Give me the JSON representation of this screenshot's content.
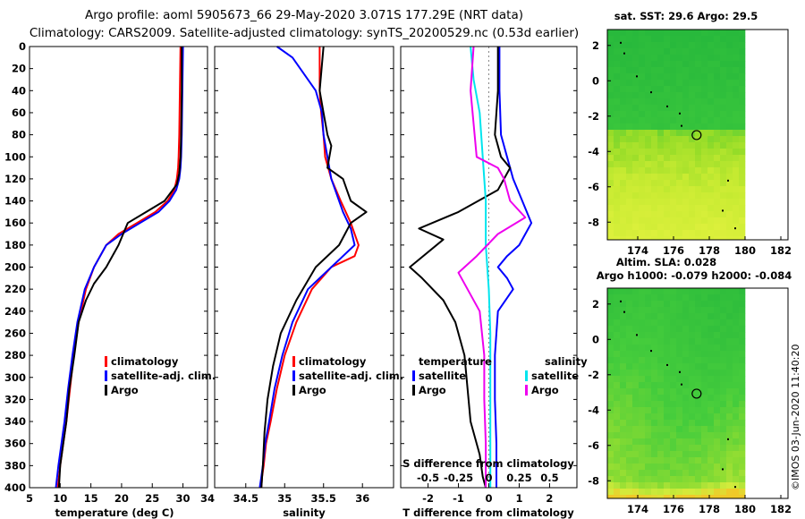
{
  "header": {
    "line1": "Argo profile: aoml 5905673_66 29-May-2020 3.071S 177.29E (NRT data)",
    "line2": "Climatology: CARS2009. Satellite-adjusted climatology: synTS_20200529.nc (0.53d earlier)"
  },
  "credit": "©IMOS 03-Jun-2020 11:40:20",
  "colors": {
    "climatology": "#ff0000",
    "satellite": "#0000ff",
    "argo": "#000000",
    "sat_salinity": "#00e5ee",
    "argo_salinity": "#ee00ee"
  },
  "chart_data": [
    {
      "type": "line",
      "id": "temperature_profile",
      "xlabel": "temperature (deg C)",
      "ylabel": "",
      "xlim": [
        5,
        34
      ],
      "ylim": [
        400,
        0
      ],
      "xticks": [
        "5",
        "10",
        "15",
        "20",
        "25",
        "30",
        "34"
      ],
      "xtick_values": [
        5,
        10,
        15,
        20,
        25,
        30,
        34
      ],
      "yticks": [
        0,
        20,
        40,
        60,
        80,
        100,
        120,
        140,
        160,
        180,
        200,
        220,
        240,
        260,
        280,
        300,
        320,
        340,
        360,
        380,
        400
      ],
      "legend": [
        "climatology",
        "satellite-adj. clim.",
        "Argo"
      ],
      "series": [
        {
          "name": "climatology",
          "color": "#ff0000",
          "x": [
            29.6,
            29.5,
            29.4,
            29.3,
            29.2,
            29.0,
            28.6,
            27.5,
            25.5,
            22.5,
            19.5,
            17.5,
            15.5,
            14.2,
            13.0,
            12.2,
            11.6,
            11.0,
            10.5,
            10.0,
            9.6
          ],
          "depth": [
            0,
            40,
            80,
            100,
            110,
            120,
            130,
            140,
            150,
            160,
            170,
            180,
            200,
            220,
            250,
            280,
            310,
            340,
            360,
            380,
            400
          ]
        },
        {
          "name": "satellite-adj. clim.",
          "color": "#0000ff",
          "x": [
            30.0,
            29.9,
            29.8,
            29.7,
            29.6,
            29.4,
            28.9,
            27.8,
            26.0,
            23.0,
            20.0,
            17.5,
            15.5,
            14.0,
            12.8,
            12.0,
            11.3,
            10.7,
            10.2,
            9.7,
            9.3
          ],
          "depth": [
            0,
            40,
            80,
            100,
            110,
            120,
            130,
            140,
            150,
            160,
            170,
            180,
            200,
            220,
            250,
            280,
            310,
            340,
            360,
            380,
            400
          ]
        },
        {
          "name": "Argo",
          "color": "#000000",
          "x": [
            29.8,
            29.8,
            29.7,
            29.6,
            29.4,
            29.0,
            27.0,
            24.0,
            21.0,
            19.5,
            17.5,
            15.5,
            14.2,
            13.0,
            12.3,
            11.5,
            11.0,
            10.5,
            10.0,
            9.8
          ],
          "depth": [
            0,
            40,
            80,
            100,
            115,
            125,
            140,
            150,
            160,
            180,
            200,
            215,
            230,
            250,
            280,
            310,
            340,
            360,
            380,
            400
          ]
        }
      ]
    },
    {
      "type": "line",
      "id": "salinity_profile",
      "xlabel": "salinity",
      "xlim": [
        34.1,
        36.4
      ],
      "ylim": [
        400,
        0
      ],
      "xticks": [
        "34.5",
        "35",
        "35.5",
        "36"
      ],
      "xtick_values": [
        34.5,
        35,
        35.5,
        36
      ],
      "legend": [
        "climatology",
        "satellite-adj. clim.",
        "Argo"
      ],
      "series": [
        {
          "name": "climatology",
          "color": "#ff0000",
          "x": [
            35.45,
            35.45,
            35.47,
            35.5,
            35.52,
            35.6,
            35.72,
            35.85,
            35.95,
            35.9,
            35.6,
            35.35,
            35.15,
            35.0,
            34.9,
            34.82,
            34.76,
            34.73,
            34.71,
            34.7
          ],
          "depth": [
            0,
            40,
            60,
            80,
            100,
            120,
            140,
            160,
            180,
            190,
            200,
            220,
            250,
            280,
            310,
            340,
            360,
            380,
            390,
            400
          ]
        },
        {
          "name": "satellite-adj. clim.",
          "color": "#0000ff",
          "x": [
            34.9,
            35.1,
            35.25,
            35.4,
            35.48,
            35.5,
            35.6,
            35.75,
            35.85,
            35.9,
            35.6,
            35.3,
            35.1,
            34.97,
            34.87,
            34.8,
            34.75,
            34.72,
            34.7,
            34.68
          ],
          "depth": [
            0,
            10,
            25,
            40,
            60,
            80,
            120,
            150,
            165,
            180,
            200,
            220,
            250,
            280,
            310,
            340,
            360,
            380,
            390,
            400
          ]
        },
        {
          "name": "Argo",
          "color": "#000000",
          "x": [
            35.5,
            35.45,
            35.5,
            35.55,
            35.6,
            35.55,
            35.75,
            35.8,
            35.85,
            36.05,
            35.85,
            35.7,
            35.4,
            35.15,
            34.95,
            34.85,
            34.78,
            34.74,
            34.72,
            34.7
          ],
          "depth": [
            0,
            40,
            60,
            80,
            90,
            110,
            120,
            130,
            140,
            150,
            160,
            180,
            200,
            230,
            260,
            290,
            320,
            350,
            380,
            400
          ]
        }
      ]
    },
    {
      "type": "line",
      "id": "difference_profile",
      "xlabel": "T difference from climatology",
      "top_axis_label": "S difference from climatology",
      "xlim": [
        -2.9,
        2.9
      ],
      "ylim": [
        400,
        0
      ],
      "xticks": [
        "-2",
        "-1",
        "0",
        "1",
        "2"
      ],
      "xtick_values": [
        -2,
        -1,
        0,
        1,
        2
      ],
      "sticks": [
        "-0.5",
        "-0.25",
        "0",
        "0.25",
        "0.5"
      ],
      "stick_values": [
        -2,
        -1,
        0,
        1,
        2
      ],
      "legend_headers": [
        "temperature",
        "salinity"
      ],
      "legend_left": [
        "satellite",
        "Argo"
      ],
      "legend_right": [
        "satellite",
        "Argo"
      ],
      "series": [
        {
          "name": "T satellite",
          "color": "#0000ff",
          "x": [
            0.35,
            0.35,
            0.4,
            0.6,
            0.8,
            1.1,
            1.4,
            1.0,
            0.6,
            0.3,
            0.6,
            0.8,
            0.3,
            0.2,
            0.2,
            0.25,
            0.25,
            0.25
          ],
          "depth": [
            0,
            40,
            80,
            100,
            120,
            140,
            160,
            180,
            190,
            200,
            210,
            220,
            240,
            280,
            320,
            360,
            380,
            400
          ]
        },
        {
          "name": "T Argo",
          "color": "#000000",
          "x": [
            0.3,
            0.3,
            0.2,
            0.4,
            0.7,
            0.3,
            -1.0,
            -2.3,
            -1.5,
            -2.6,
            -2.2,
            -1.5,
            -1.1,
            -0.8,
            -0.7,
            -0.6,
            -0.3,
            -0.2,
            -0.1
          ],
          "depth": [
            0,
            40,
            80,
            100,
            110,
            130,
            150,
            165,
            175,
            200,
            210,
            230,
            250,
            280,
            310,
            340,
            370,
            390,
            400
          ]
        },
        {
          "name": "S satellite",
          "color": "#00e5ee",
          "x": [
            -0.6,
            -0.5,
            -0.3,
            -0.2,
            -0.1,
            -0.1,
            0.0,
            0.05,
            0.05,
            0.05,
            0.05,
            0.05
          ],
          "depth": [
            0,
            30,
            60,
            100,
            140,
            180,
            220,
            260,
            300,
            340,
            380,
            400
          ]
        },
        {
          "name": "S Argo",
          "color": "#ee00ee",
          "x": [
            -0.5,
            -0.6,
            -0.5,
            -0.4,
            0.3,
            0.5,
            0.7,
            1.2,
            0.3,
            -0.4,
            -1.0,
            -0.3,
            -0.15,
            -0.15,
            -0.1,
            -0.1
          ],
          "depth": [
            0,
            40,
            70,
            100,
            110,
            120,
            140,
            155,
            170,
            190,
            205,
            240,
            280,
            320,
            360,
            400
          ]
        }
      ]
    },
    {
      "type": "heatmap",
      "id": "sst_map",
      "title": "sat. SST: 29.6  Argo: 29.5",
      "xticks": [
        "174",
        "176",
        "178",
        "180",
        "182"
      ],
      "xtick_values": [
        174,
        176,
        178,
        180,
        182
      ],
      "yticks": [
        "2",
        "0",
        "-2",
        "-4",
        "-6",
        "-8"
      ],
      "ytick_values": [
        2,
        0,
        -2,
        -4,
        -6,
        -8
      ],
      "xlim": [
        172.3,
        182.4
      ],
      "ylim": [
        -9.0,
        2.9
      ],
      "argo_position": [
        177.29,
        -3.071
      ]
    },
    {
      "type": "heatmap",
      "id": "sla_map",
      "title": "Altim. SLA: 0.028",
      "subtitle": "Argo h1000: -0.079 h2000: -0.084",
      "xticks": [
        "174",
        "176",
        "178",
        "180",
        "182"
      ],
      "xtick_values": [
        174,
        176,
        178,
        180,
        182
      ],
      "yticks": [
        "2",
        "0",
        "-2",
        "-4",
        "-6",
        "-8"
      ],
      "ytick_values": [
        2,
        0,
        -2,
        -4,
        -6,
        -8
      ],
      "xlim": [
        172.3,
        182.4
      ],
      "ylim": [
        -9.0,
        2.9
      ],
      "argo_position": [
        177.29,
        -3.071
      ]
    }
  ]
}
